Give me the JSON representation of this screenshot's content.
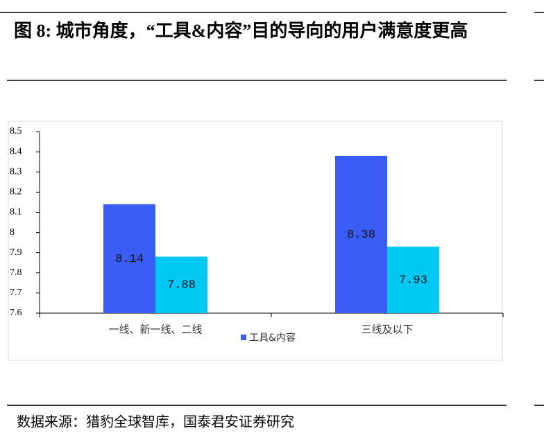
{
  "figure_title": "图 8:  城市角度，“工具&内容”目的导向的用户满意度更高",
  "source": "数据来源：猎豹全球智库，国泰君安证券研究",
  "chart_data": {
    "type": "bar",
    "categories": [
      "一线、新一线、二线",
      "三线及以下"
    ],
    "series": [
      {
        "name": "工具&内容",
        "color": "#3a5cf5",
        "values": [
          8.14,
          8.38
        ]
      },
      {
        "color": "#00c8f5",
        "values": [
          7.88,
          7.93
        ]
      }
    ],
    "ylim": [
      7.6,
      8.5
    ],
    "yticks": [
      7.6,
      7.7,
      7.8,
      7.9,
      8,
      8.1,
      8.2,
      8.3,
      8.4,
      8.5
    ],
    "grid": false
  }
}
